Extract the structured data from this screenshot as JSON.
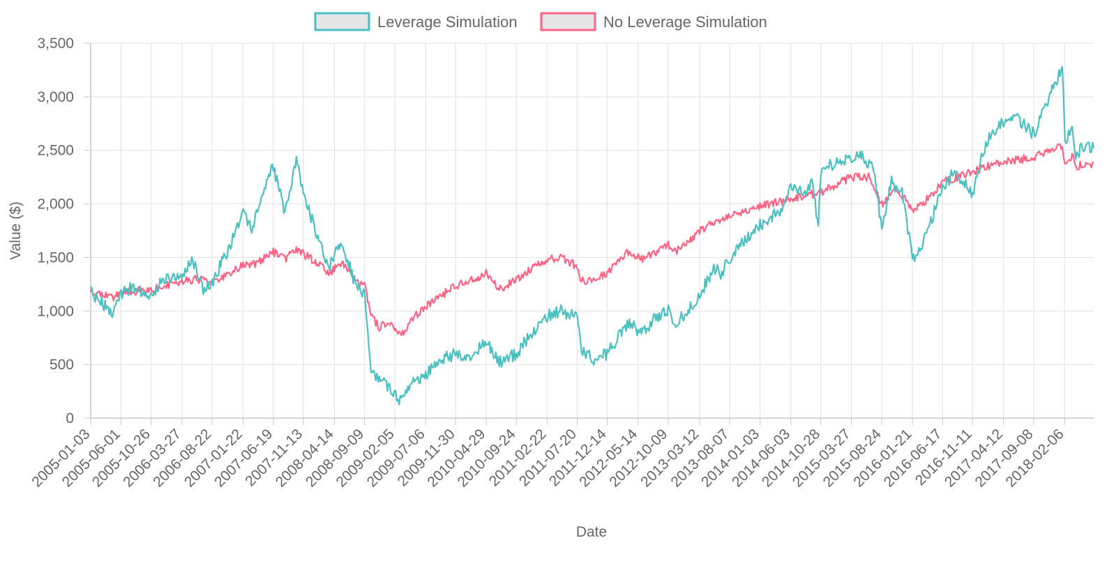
{
  "chart_data": {
    "type": "line",
    "title": "",
    "xlabel": "Date",
    "ylabel": "Value ($)",
    "ylim": [
      0,
      3500
    ],
    "y_ticks": [
      0,
      500,
      1000,
      1500,
      2000,
      2500,
      3000,
      3500
    ],
    "y_tick_labels": [
      "0",
      "500",
      "1,000",
      "1,500",
      "2,000",
      "2,500",
      "3,000",
      "3,500"
    ],
    "x_tick_labels": [
      "2005-01-03",
      "2005-06-01",
      "2005-10-26",
      "2006-03-27",
      "2006-08-22",
      "2007-01-22",
      "2007-06-19",
      "2007-11-13",
      "2008-04-14",
      "2008-09-09",
      "2009-02-05",
      "2009-07-06",
      "2009-11-30",
      "2010-04-29",
      "2010-09-24",
      "2011-02-22",
      "2011-07-20",
      "2011-12-14",
      "2012-05-14",
      "2012-10-09",
      "2013-03-12",
      "2013-08-07",
      "2014-01-03",
      "2014-06-03",
      "2014-10-28",
      "2015-03-27",
      "2015-08-24",
      "2016-01-21",
      "2016-06-17",
      "2016-11-11",
      "2017-04-12",
      "2017-09-08",
      "2018-02-06"
    ],
    "x_range": [
      "2005-01-03",
      "2018-06-29"
    ],
    "grid": true,
    "legend_position": "top",
    "series": [
      {
        "name": "Leverage Simulation",
        "color": "#4bc0c0",
        "x": [
          "2005-01-03",
          "2005-03-15",
          "2005-04-20",
          "2005-06-01",
          "2005-08-01",
          "2005-10-26",
          "2005-12-15",
          "2006-03-27",
          "2006-05-20",
          "2006-07-10",
          "2006-08-22",
          "2006-11-15",
          "2007-01-22",
          "2007-03-05",
          "2007-04-20",
          "2007-06-19",
          "2007-08-15",
          "2007-10-10",
          "2007-11-13",
          "2008-01-22",
          "2008-03-17",
          "2008-04-14",
          "2008-05-20",
          "2008-07-15",
          "2008-09-09",
          "2008-10-10",
          "2008-11-20",
          "2009-01-05",
          "2009-03-09",
          "2009-04-15",
          "2009-07-06",
          "2009-09-15",
          "2009-11-30",
          "2010-02-10",
          "2010-04-29",
          "2010-07-02",
          "2010-09-24",
          "2010-12-15",
          "2011-02-22",
          "2011-05-01",
          "2011-07-20",
          "2011-08-10",
          "2011-10-04",
          "2011-12-14",
          "2012-03-27",
          "2012-05-14",
          "2012-06-05",
          "2012-08-15",
          "2012-10-09",
          "2012-11-15",
          "2013-01-15",
          "2013-03-12",
          "2013-05-21",
          "2013-06-24",
          "2013-08-07",
          "2013-10-15",
          "2014-01-03",
          "2014-04-15",
          "2014-06-03",
          "2014-08-05",
          "2014-09-20",
          "2014-10-16",
          "2014-10-28",
          "2015-01-15",
          "2015-03-27",
          "2015-05-20",
          "2015-07-20",
          "2015-08-24",
          "2015-10-10",
          "2015-12-01",
          "2016-01-21",
          "2016-02-11",
          "2016-04-15",
          "2016-06-17",
          "2016-08-15",
          "2016-11-11",
          "2016-12-30",
          "2017-03-01",
          "2017-04-12",
          "2017-06-15",
          "2017-09-08",
          "2017-11-15",
          "2018-01-26",
          "2018-02-08",
          "2018-03-15",
          "2018-04-02",
          "2018-05-15",
          "2018-06-29"
        ],
        "values": [
          1170,
          1050,
          1000,
          1150,
          1230,
          1130,
          1280,
          1350,
          1470,
          1200,
          1260,
          1600,
          1950,
          1750,
          2050,
          2350,
          1900,
          2400,
          2100,
          1700,
          1400,
          1550,
          1650,
          1300,
          1150,
          450,
          350,
          300,
          150,
          300,
          400,
          550,
          600,
          580,
          700,
          520,
          600,
          800,
          950,
          1000,
          950,
          650,
          550,
          600,
          900,
          820,
          800,
          950,
          1000,
          880,
          1000,
          1150,
          1400,
          1350,
          1500,
          1650,
          1800,
          1950,
          2150,
          2100,
          2200,
          1750,
          2300,
          2400,
          2430,
          2450,
          2300,
          1750,
          2200,
          2100,
          1500,
          1520,
          1800,
          2150,
          2300,
          2100,
          2500,
          2700,
          2750,
          2800,
          2650,
          2950,
          3300,
          2600,
          2700,
          2450,
          2550,
          2520
        ]
      },
      {
        "name": "No Leverage Simulation",
        "color": "#ff6384",
        "x": [
          "2005-01-03",
          "2005-04-20",
          "2005-06-01",
          "2005-10-26",
          "2006-03-27",
          "2006-06-13",
          "2006-08-22",
          "2007-01-22",
          "2007-03-05",
          "2007-06-19",
          "2007-08-15",
          "2007-10-10",
          "2008-01-22",
          "2008-03-17",
          "2008-05-20",
          "2008-07-15",
          "2008-09-09",
          "2008-10-10",
          "2008-11-20",
          "2009-01-05",
          "2009-03-09",
          "2009-05-15",
          "2009-07-06",
          "2009-11-30",
          "2010-04-29",
          "2010-07-02",
          "2010-09-24",
          "2011-02-22",
          "2011-05-01",
          "2011-07-20",
          "2011-08-10",
          "2011-10-04",
          "2011-12-14",
          "2012-03-27",
          "2012-06-05",
          "2012-10-09",
          "2012-11-15",
          "2013-03-12",
          "2013-08-07",
          "2014-01-03",
          "2014-06-03",
          "2014-10-16",
          "2015-03-27",
          "2015-06-20",
          "2015-08-24",
          "2015-11-01",
          "2016-01-21",
          "2016-02-11",
          "2016-06-17",
          "2016-11-11",
          "2017-04-12",
          "2017-09-08",
          "2018-01-26",
          "2018-02-08",
          "2018-03-15",
          "2018-04-02",
          "2018-06-29"
        ],
        "values": [
          1180,
          1130,
          1170,
          1200,
          1280,
          1300,
          1260,
          1430,
          1420,
          1550,
          1480,
          1570,
          1450,
          1350,
          1450,
          1300,
          1250,
          950,
          850,
          900,
          780,
          950,
          1050,
          1230,
          1350,
          1200,
          1300,
          1480,
          1500,
          1420,
          1280,
          1300,
          1350,
          1560,
          1480,
          1620,
          1550,
          1750,
          1900,
          1980,
          2050,
          2100,
          2250,
          2250,
          2000,
          2150,
          1950,
          1950,
          2200,
          2300,
          2400,
          2430,
          2550,
          2350,
          2450,
          2350,
          2380
        ]
      }
    ]
  }
}
